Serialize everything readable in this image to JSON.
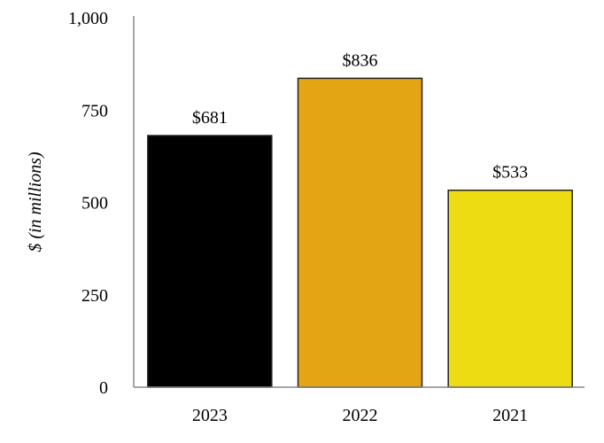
{
  "chart_data": {
    "type": "bar",
    "title": "",
    "xlabel": "",
    "ylabel": "$ (in millions)",
    "categories": [
      "2023",
      "2022",
      "2021"
    ],
    "values": [
      681,
      836,
      533
    ],
    "data_labels": [
      "$681",
      "$836",
      "$533"
    ],
    "colors": [
      "#000000",
      "#E3A514",
      "#EEDC13"
    ],
    "ylim": [
      0,
      1000
    ],
    "yticks": [
      0,
      250,
      500,
      750,
      1000
    ],
    "ytick_labels": [
      "0",
      "250",
      "500",
      "750",
      "1,000"
    ],
    "grid": false,
    "legend": "none"
  }
}
